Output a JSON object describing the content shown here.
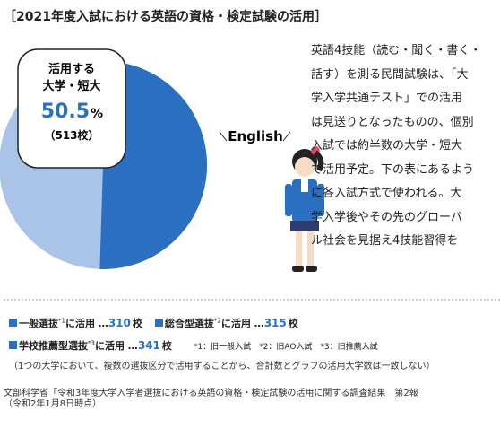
{
  "title": "［2021年度入試における英語の資格・検定試験の活用］",
  "callout": {
    "line1": "活用する",
    "line2": "大学・短大",
    "value": 50.5,
    "unit": "%",
    "count": "（513校）"
  },
  "english": "English",
  "body": [
    "英語4技能（読む・聞く・書く・",
    "話す）を測る民間試験は、「大",
    "学入学共通テスト」での活用",
    "は見送りとなったものの、個別",
    "入試では約半数の大学・短大",
    "で活用予定。下の表にあるよう",
    "に各入試方式で使われる。大",
    "学入学後やその先のグローバ",
    "ル社会を見据え4技能習得を"
  ],
  "items": [
    {
      "label": "一般選抜",
      "note": "*1",
      "text": "に活用 …",
      "value": 310,
      "unit": "校"
    },
    {
      "label": "総合型選抜",
      "note": "*2",
      "text": "に活用 …",
      "value": 315,
      "unit": "校"
    },
    {
      "label": "学校推薦型選抜",
      "note": "*3",
      "text": "に活用 …",
      "value": 341,
      "unit": "校"
    }
  ],
  "footnotes": "*1：旧一般入試　*2：旧AO入試　*3：旧推薦入試",
  "note": "（1つの大学において、複数の選抜区分で活用することから、合計数とグラフの活用大学数は一致しない）",
  "source": [
    "文部科学省「令和3年度大学入学者選抜における英語の資格・検定試験の活用に関する調査結果　第2報",
    "（令和2年1月8日時点）"
  ]
}
